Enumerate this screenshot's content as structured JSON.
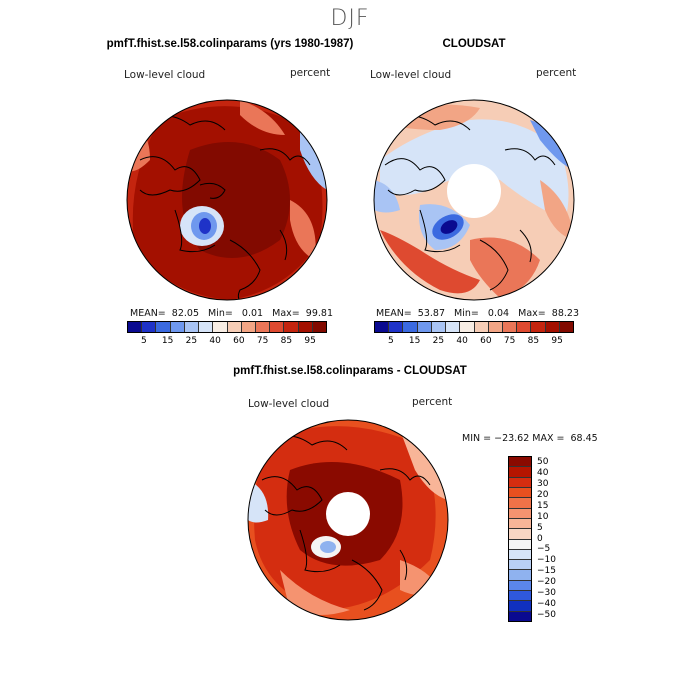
{
  "figure": {
    "season": "DJF",
    "panels": [
      {
        "title": "pmfT.fhist.se.l58.colinparams (yrs 1980-1987)",
        "variable": "Low-level cloud",
        "units": "percent",
        "stats": "MEAN=  82.05   Min=   0.01   Max=  99.81",
        "colorbar_ticks": [
          "5",
          "15",
          "25",
          "40",
          "60",
          "75",
          "85",
          "95"
        ]
      },
      {
        "title": "CLOUDSAT",
        "variable": "Low-level cloud",
        "units": "percent",
        "stats": "MEAN=  53.87   Min=   0.04   Max=  88.23",
        "colorbar_ticks": [
          "5",
          "15",
          "25",
          "40",
          "60",
          "75",
          "85",
          "95"
        ]
      },
      {
        "title": "pmfT.fhist.se.l58.colinparams - CLOUDSAT",
        "variable": "Low-level cloud",
        "units": "percent",
        "stats": "MIN = −23.62 MAX =  68.45",
        "colorbar_ticks": [
          "50",
          "40",
          "30",
          "20",
          "15",
          "10",
          "5",
          "0",
          "−5",
          "−10",
          "−15",
          "−20",
          "−30",
          "−40",
          "−50"
        ]
      }
    ],
    "abs_colors": [
      "#0a0a90",
      "#1f33c8",
      "#3b6ae0",
      "#6f98ee",
      "#a9c4f4",
      "#d6e4f8",
      "#f7ede4",
      "#f6cdb6",
      "#f2a585",
      "#ea7658",
      "#de4a30",
      "#c4250f",
      "#a31000",
      "#820a00"
    ],
    "diff_colors": [
      "#8a0a00",
      "#b51500",
      "#d42d10",
      "#e8501f",
      "#f07248",
      "#f59370",
      "#f8b598",
      "#f9d6c4",
      "#f4f4f4",
      "#d6e4f8",
      "#b8cff4",
      "#8fb2ef",
      "#5b86ea",
      "#2f58dc",
      "#1030bf",
      "#0a0a90"
    ]
  }
}
